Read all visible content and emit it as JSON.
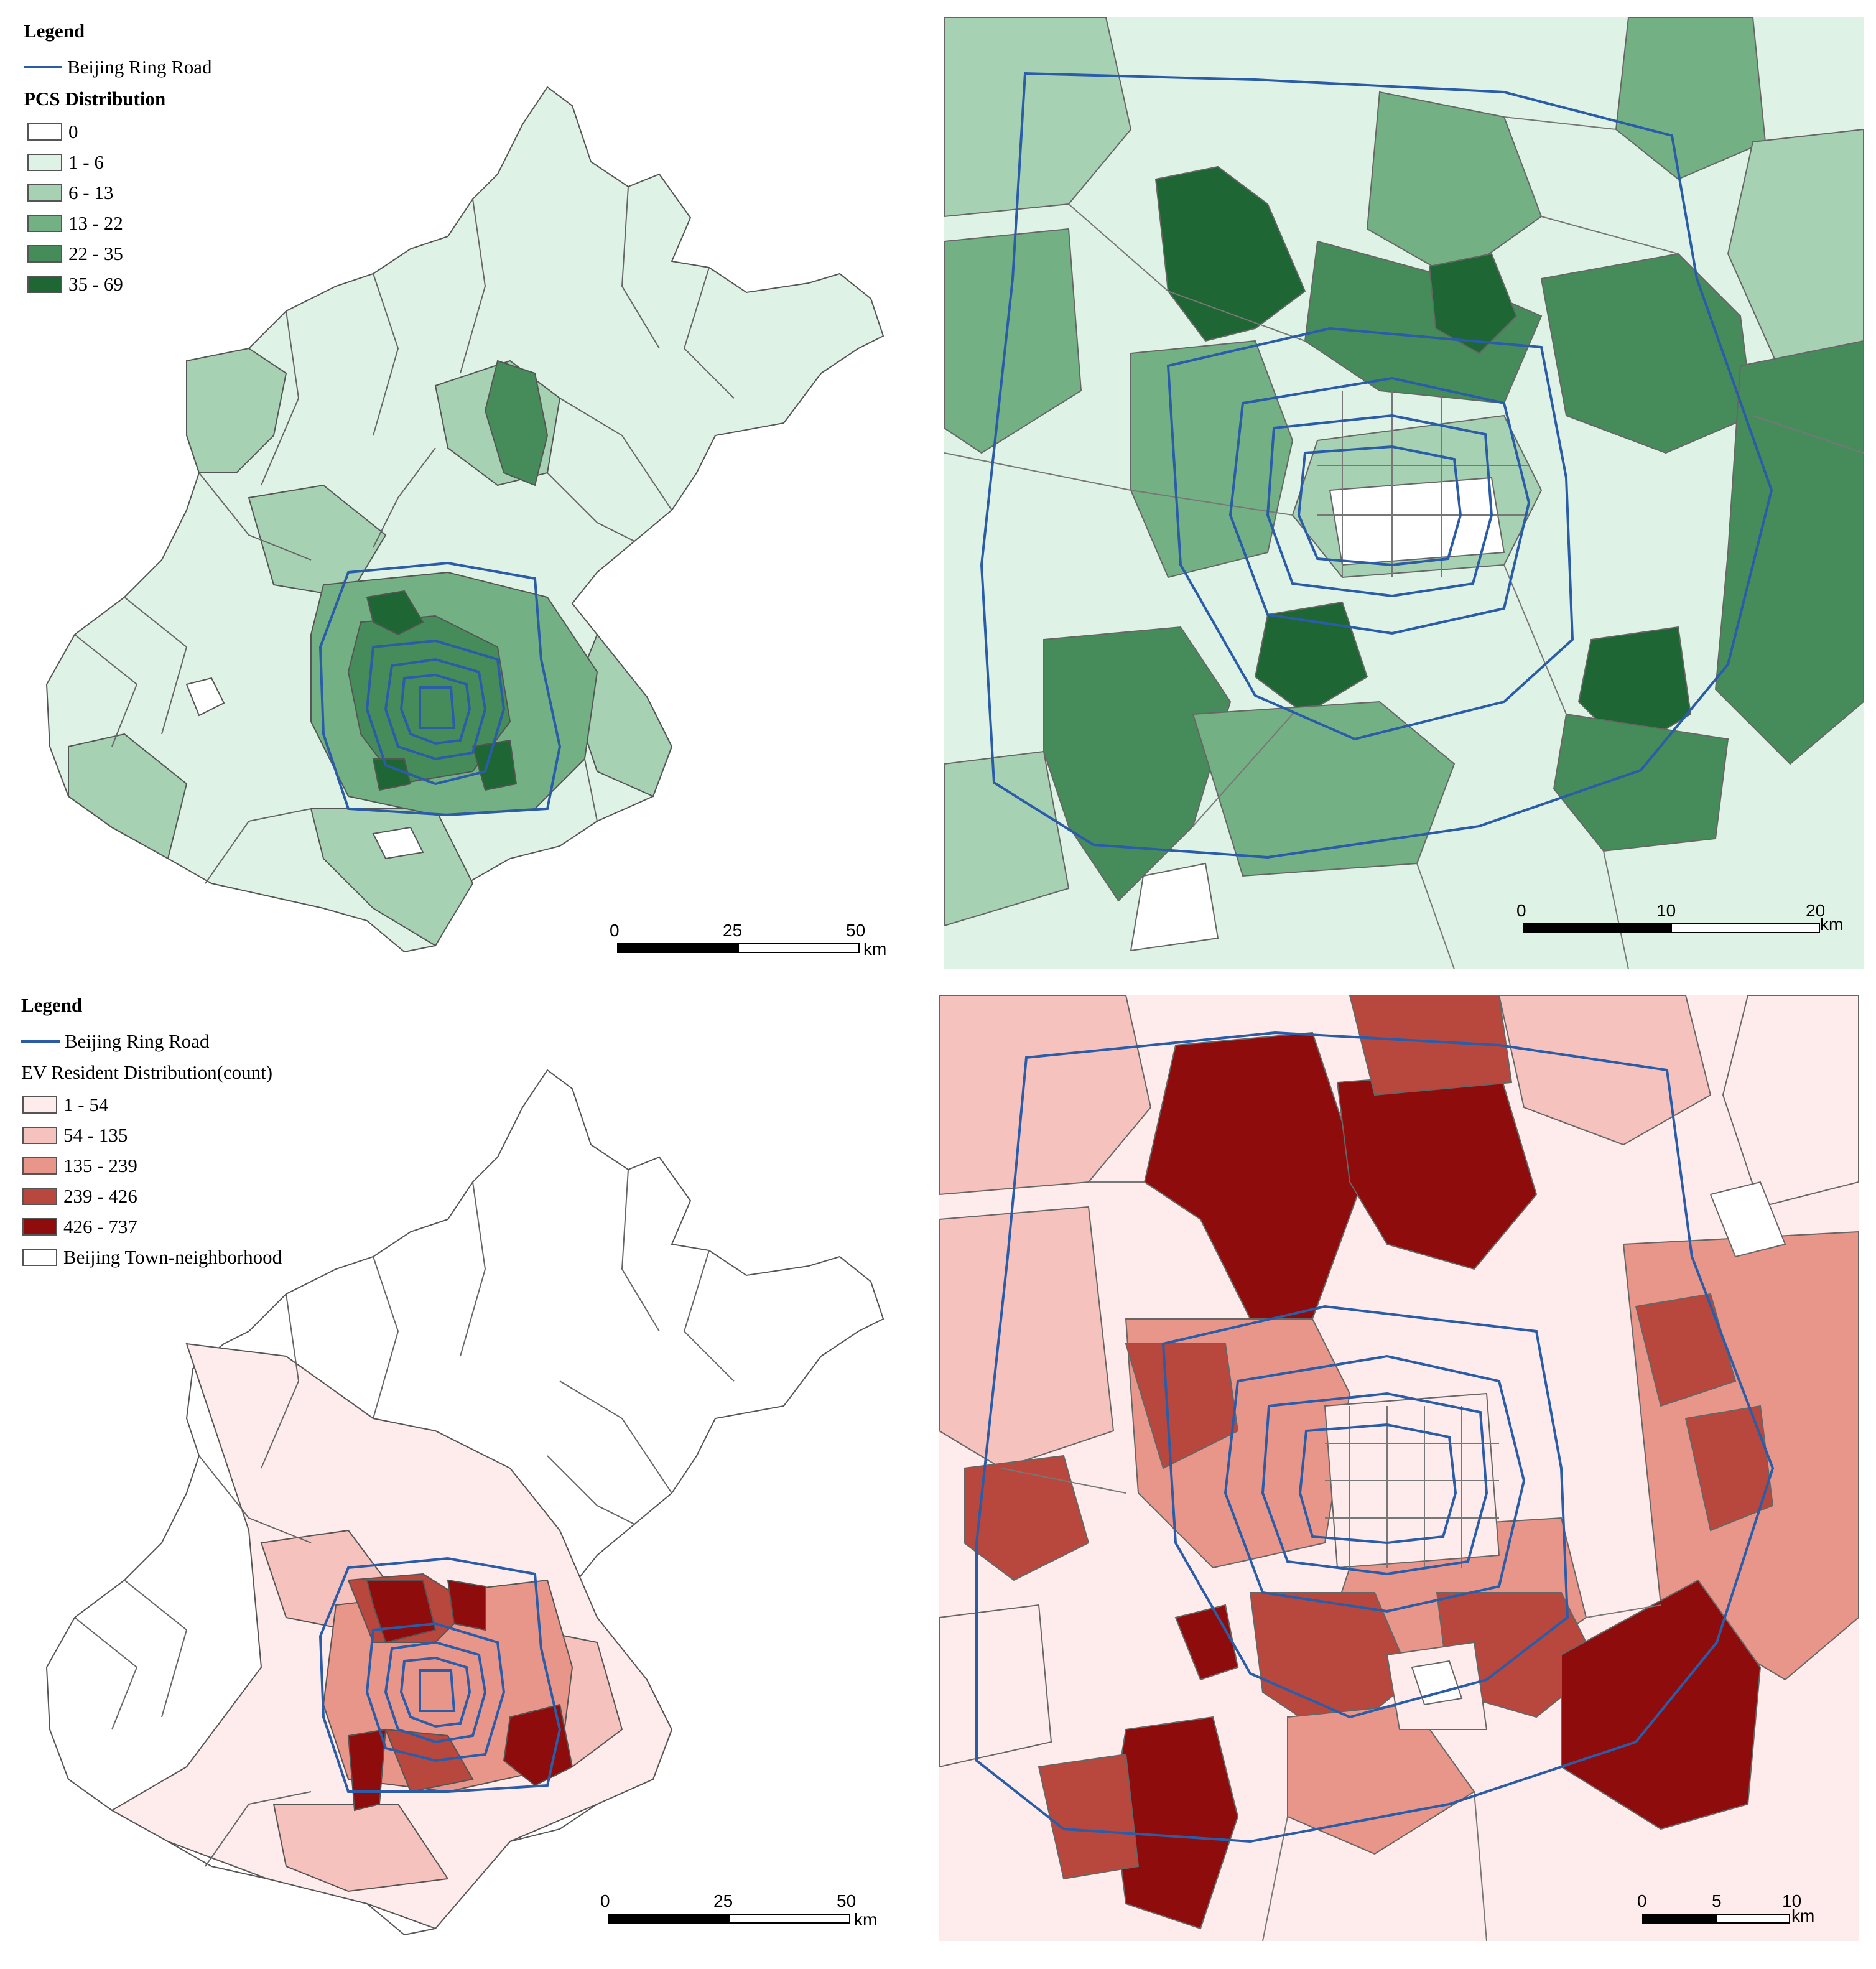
{
  "top_left": {
    "legend_title": "Legend",
    "ring_label": "Beijing Ring Road",
    "dist_title": "PCS Distribution",
    "classes": [
      {
        "label": "0",
        "color": "#ffffff"
      },
      {
        "label": "1 - 6",
        "color": "#dff2e6"
      },
      {
        "label": "6 - 13",
        "color": "#a6d1b2"
      },
      {
        "label": "13 - 22",
        "color": "#73b084"
      },
      {
        "label": "22 - 35",
        "color": "#468c5b"
      },
      {
        "label": "35 - 69",
        "color": "#1e6633"
      }
    ],
    "scale": {
      "ticks": [
        "0",
        "25",
        "50"
      ],
      "unit": "km"
    }
  },
  "top_right": {
    "scale": {
      "ticks": [
        "0",
        "10",
        "20"
      ],
      "unit": "km"
    }
  },
  "bottom_left": {
    "legend_title": "Legend",
    "ring_label": "Beijing Ring Road",
    "dist_title": "EV Resident Distribution(count)",
    "classes": [
      {
        "label": "1 - 54",
        "color": "#fdeceb"
      },
      {
        "label": "54  - 135",
        "color": "#f6c2bd"
      },
      {
        "label": "135  - 239",
        "color": "#e8958a"
      },
      {
        "label": "239  - 426",
        "color": "#b8473d"
      },
      {
        "label": "426 - 737",
        "color": "#8e0c0c"
      },
      {
        "label": "Beijing Town-neighborhood",
        "color": "#ffffff"
      }
    ],
    "scale": {
      "ticks": [
        "0",
        "25",
        "50"
      ],
      "unit": "km"
    }
  },
  "bottom_right": {
    "scale": {
      "ticks": [
        "0",
        "5",
        "10"
      ],
      "unit": "km"
    }
  },
  "colors": {
    "ring_road": "#2a5ca8",
    "border": "#555555"
  }
}
